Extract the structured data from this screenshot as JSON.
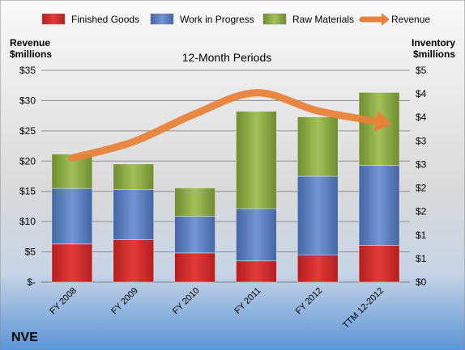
{
  "chart_data": {
    "type": "bar",
    "title": "12-Month Periods",
    "company": "NVE",
    "left_axis_label_line1": "Revenue",
    "left_axis_label_line2": "$millions",
    "right_axis_label_line1": "Inventory",
    "right_axis_label_line2": "$millions",
    "categories": [
      "FY 2008",
      "FY 2009",
      "FY 2010",
      "FY 2011",
      "FY 2012",
      "TTM 12-2012"
    ],
    "left_ticks": [
      "$-",
      "$5",
      "$10",
      "$15",
      "$20",
      "$25",
      "$30",
      "$35"
    ],
    "right_ticks": [
      "$0",
      "$1",
      "$1",
      "$2",
      "$2",
      "$3",
      "$3",
      "$4",
      "$4",
      "$5"
    ],
    "ylim_left": [
      0,
      35
    ],
    "ylim_right": [
      0,
      4.5
    ],
    "legend_position": "top",
    "grid": true,
    "series": [
      {
        "name": "Finished Goods",
        "axis": "right",
        "color": "#d42a2a",
        "values": [
          0.81,
          0.9,
          0.62,
          0.45,
          0.58,
          0.78
        ]
      },
      {
        "name": "Work in Progress",
        "axis": "right",
        "color": "#5b7fbf",
        "values": [
          1.18,
          1.07,
          0.78,
          1.11,
          1.67,
          1.7
        ]
      },
      {
        "name": "Raw Materials",
        "axis": "right",
        "color": "#8eac46",
        "values": [
          0.73,
          0.54,
          0.6,
          2.07,
          1.26,
          1.55
        ]
      },
      {
        "name": "Revenue",
        "axis": "left",
        "type": "line",
        "color": "#e8823a",
        "values": [
          20.5,
          23.2,
          27.8,
          31.3,
          28.3,
          26.5
        ]
      }
    ]
  }
}
